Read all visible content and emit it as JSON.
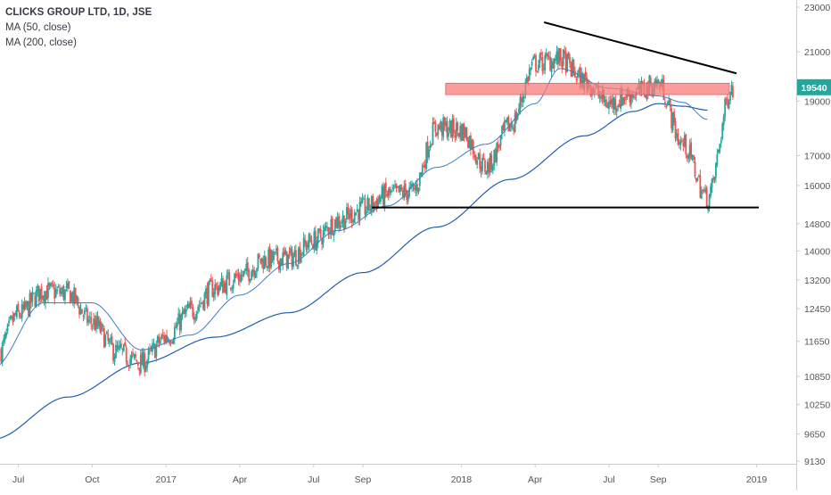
{
  "legend": {
    "symbol_line": "CLICKS GROUP LTD, 1D, JSE",
    "ma50_label": "MA (50, close)",
    "ma200_label": "MA (200, close)"
  },
  "chart_data": {
    "type": "candlestick",
    "symbol": "CLICKS GROUP LTD",
    "interval": "1D",
    "exchange": "JSE",
    "price_scale": "log",
    "ylim": [
      9130,
      23000
    ],
    "x_ticks": [
      "Jul",
      "Oct",
      "2017",
      "Apr",
      "Jul",
      "Sep",
      "2018",
      "Apr",
      "Jul",
      "Sep",
      "2019"
    ],
    "y_ticks": [
      23000,
      21000,
      19000,
      17000,
      16000,
      14800,
      14000,
      13200,
      12450,
      11650,
      10850,
      10250,
      9650,
      9130
    ],
    "last_price": 19540,
    "colors": {
      "up": "#26a69a",
      "down": "#ef5350",
      "ma50": "#3b7fc4",
      "ma200": "#1f5fb0",
      "resistance_zone": "#f77c7c",
      "trendline": "#000000",
      "last_price_label": "#26a69a",
      "axis_text": "#555555"
    },
    "monthly_prices": [
      {
        "month": "2016-06",
        "value": 11200
      },
      {
        "month": "2016-07",
        "value": 12300
      },
      {
        "month": "2016-08",
        "value": 12900
      },
      {
        "month": "2016-09",
        "value": 12850
      },
      {
        "month": "2016-10",
        "value": 12100
      },
      {
        "month": "2016-11",
        "value": 11400
      },
      {
        "month": "2016-12",
        "value": 11150
      },
      {
        "month": "2017-01",
        "value": 11750
      },
      {
        "month": "2017-02",
        "value": 12400
      },
      {
        "month": "2017-03",
        "value": 13000
      },
      {
        "month": "2017-04",
        "value": 13300
      },
      {
        "month": "2017-05",
        "value": 13750
      },
      {
        "month": "2017-06",
        "value": 13800
      },
      {
        "month": "2017-07",
        "value": 14300
      },
      {
        "month": "2017-08",
        "value": 14900
      },
      {
        "month": "2017-09",
        "value": 15250
      },
      {
        "month": "2017-10",
        "value": 15700
      },
      {
        "month": "2017-11",
        "value": 15800
      },
      {
        "month": "2017-12",
        "value": 18000
      },
      {
        "month": "2018-01",
        "value": 17900
      },
      {
        "month": "2018-02",
        "value": 16600
      },
      {
        "month": "2018-03",
        "value": 18100
      },
      {
        "month": "2018-04",
        "value": 20500
      },
      {
        "month": "2018-05",
        "value": 20700
      },
      {
        "month": "2018-06",
        "value": 19800
      },
      {
        "month": "2018-07",
        "value": 18900
      },
      {
        "month": "2018-08",
        "value": 19300
      },
      {
        "month": "2018-09",
        "value": 19700
      },
      {
        "month": "2018-10",
        "value": 17400
      },
      {
        "month": "2018-11",
        "value": 15600
      },
      {
        "month": "2018-12",
        "value": 19540
      }
    ],
    "ma50": [
      {
        "month": "2016-06",
        "value": 11050
      },
      {
        "month": "2016-08",
        "value": 12600
      },
      {
        "month": "2016-10",
        "value": 12600
      },
      {
        "month": "2016-12",
        "value": 11450
      },
      {
        "month": "2017-02",
        "value": 11800
      },
      {
        "month": "2017-04",
        "value": 12800
      },
      {
        "month": "2017-06",
        "value": 13650
      },
      {
        "month": "2017-08",
        "value": 14600
      },
      {
        "month": "2017-10",
        "value": 15350
      },
      {
        "month": "2017-12",
        "value": 16600
      },
      {
        "month": "2018-02",
        "value": 17400
      },
      {
        "month": "2018-04",
        "value": 18900
      },
      {
        "month": "2018-05",
        "value": 20300
      },
      {
        "month": "2018-07",
        "value": 19500
      },
      {
        "month": "2018-09",
        "value": 19200
      },
      {
        "month": "2018-10",
        "value": 18950
      },
      {
        "month": "2018-11",
        "value": 18300
      }
    ],
    "ma200": [
      {
        "month": "2016-06",
        "value": 9550
      },
      {
        "month": "2016-09",
        "value": 10400
      },
      {
        "month": "2016-12",
        "value": 11150
      },
      {
        "month": "2017-03",
        "value": 11750
      },
      {
        "month": "2017-06",
        "value": 12350
      },
      {
        "month": "2017-09",
        "value": 13400
      },
      {
        "month": "2017-12",
        "value": 14700
      },
      {
        "month": "2018-03",
        "value": 16200
      },
      {
        "month": "2018-06",
        "value": 17700
      },
      {
        "month": "2018-08",
        "value": 18600
      },
      {
        "month": "2018-09",
        "value": 18900
      },
      {
        "month": "2018-10",
        "value": 18800
      },
      {
        "month": "2018-11",
        "value": 18650
      }
    ],
    "annotations": {
      "resistance_zone": {
        "low": 19250,
        "high": 19700,
        "from": "2017-12",
        "to": "2018-12"
      },
      "support_line": {
        "value": 15300,
        "from": "2017-09",
        "to": "2018-12"
      },
      "descending_trendline": {
        "from": {
          "month": "2018-04",
          "value": 22300
        },
        "to": {
          "month": "2018-12",
          "value": 20100
        }
      }
    }
  }
}
